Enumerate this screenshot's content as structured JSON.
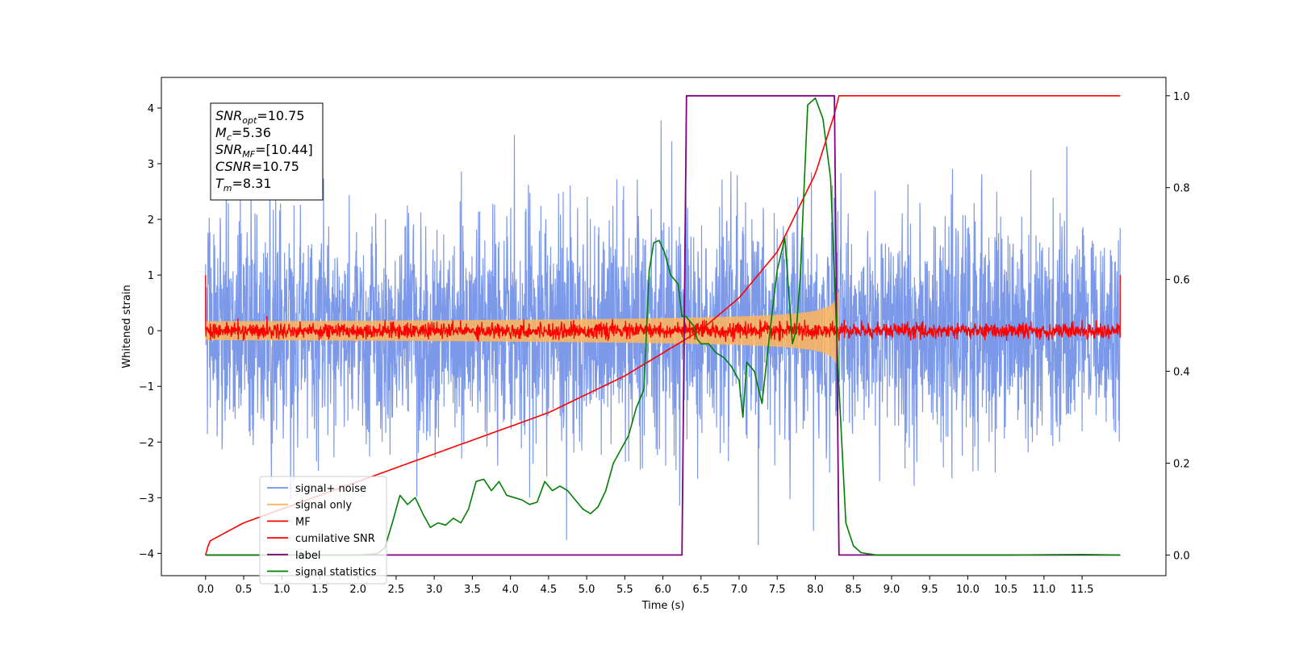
{
  "chart_data": {
    "type": "line",
    "xlabel": "Time (s)",
    "ylabel_left": "Whitened strain",
    "ylabel_right": "",
    "xlim": [
      -0.58,
      12.6
    ],
    "ylim_left": [
      -4.4,
      4.55
    ],
    "ylim_right": [
      -0.045,
      1.04
    ],
    "x_ticks": [
      "0.0",
      "0.5",
      "1.0",
      "1.5",
      "2.0",
      "2.5",
      "3.0",
      "3.5",
      "4.0",
      "4.5",
      "5.0",
      "5.5",
      "6.0",
      "6.5",
      "7.0",
      "7.5",
      "8.0",
      "8.5",
      "9.0",
      "9.5",
      "10.0",
      "10.5",
      "11.0",
      "11.5"
    ],
    "y_ticks_left": [
      "4",
      "3",
      "2",
      "1",
      "0",
      "−1",
      "−2",
      "−3",
      "−4"
    ],
    "y_ticks_right": [
      "1.0",
      "0.8",
      "0.6",
      "0.4",
      "0.2",
      "0.0"
    ],
    "grid": false,
    "legend_position": "lower-left",
    "annotation": {
      "lines": [
        {
          "base": "SNR",
          "sub": "opt",
          "rest": "=10.75"
        },
        {
          "base": "M",
          "sub": "c",
          "rest": "=5.36"
        },
        {
          "base": "SNR",
          "sub": "MF",
          "rest": "=[10.44]"
        },
        {
          "base": "CSNR",
          "sub": "",
          "rest": "=10.75"
        },
        {
          "base": "T",
          "sub": "m",
          "rest": "=8.31"
        }
      ]
    },
    "series": [
      {
        "name": "signal+ noise",
        "axis": "left",
        "color": "#7593e8",
        "style": "noise",
        "x_range": [
          0,
          12
        ],
        "typical_range": [
          -1.9,
          2.0
        ],
        "extremes": [
          -3.85,
          4.15
        ]
      },
      {
        "name": "signal only",
        "axis": "left",
        "color": "#ffb55a",
        "style": "chirp",
        "x_range": [
          0,
          8.31
        ],
        "peak_amplitude": 0.75
      },
      {
        "name": "MF",
        "axis": "left",
        "color": "#ff0000",
        "style": "noise-small",
        "x_range": [
          0,
          12
        ],
        "typical_range": [
          -0.15,
          0.15
        ],
        "edge_value": 1.0
      },
      {
        "name": "cumilative SNR",
        "axis": "right",
        "color": "#ff0000",
        "style": "curve",
        "x": [
          0.0,
          0.05,
          0.5,
          1.0,
          1.5,
          2.0,
          2.5,
          3.0,
          3.5,
          4.0,
          4.5,
          5.0,
          5.5,
          6.0,
          6.5,
          7.0,
          7.5,
          8.0,
          8.25,
          8.31,
          12.0
        ],
        "y": [
          0.0,
          0.03,
          0.07,
          0.1,
          0.13,
          0.16,
          0.19,
          0.22,
          0.25,
          0.28,
          0.31,
          0.35,
          0.39,
          0.44,
          0.49,
          0.56,
          0.66,
          0.83,
          0.96,
          1.0,
          1.0
        ]
      },
      {
        "name": "label",
        "axis": "right",
        "color": "#800080",
        "style": "step",
        "x": [
          0.0,
          6.25,
          6.31,
          8.25,
          8.31,
          12.0
        ],
        "y": [
          0.0,
          0.0,
          1.0,
          1.0,
          0.0,
          0.0
        ]
      },
      {
        "name": "signal statistics",
        "axis": "right",
        "color": "#008000",
        "style": "line",
        "x": [
          0.0,
          1.0,
          2.0,
          2.25,
          2.35,
          2.45,
          2.55,
          2.65,
          2.75,
          2.85,
          2.95,
          3.05,
          3.15,
          3.25,
          3.35,
          3.45,
          3.55,
          3.65,
          3.75,
          3.85,
          3.95,
          4.05,
          4.15,
          4.25,
          4.35,
          4.45,
          4.55,
          4.65,
          4.75,
          4.85,
          4.95,
          5.05,
          5.15,
          5.25,
          5.35,
          5.45,
          5.55,
          5.65,
          5.75,
          5.82,
          5.88,
          5.95,
          6.02,
          6.1,
          6.2,
          6.25,
          6.3,
          6.4,
          6.45,
          6.5,
          6.6,
          6.7,
          6.8,
          6.9,
          7.0,
          7.05,
          7.1,
          7.2,
          7.3,
          7.4,
          7.5,
          7.6,
          7.7,
          7.75,
          7.8,
          7.9,
          8.0,
          8.1,
          8.2,
          8.3,
          8.4,
          8.5,
          8.6,
          8.8,
          9.5,
          10.5,
          11.5,
          12.0
        ],
        "y": [
          0.0,
          0.0,
          0.0,
          0.003,
          0.015,
          0.07,
          0.13,
          0.11,
          0.125,
          0.09,
          0.06,
          0.07,
          0.065,
          0.08,
          0.07,
          0.1,
          0.16,
          0.165,
          0.14,
          0.16,
          0.13,
          0.125,
          0.12,
          0.11,
          0.115,
          0.16,
          0.14,
          0.15,
          0.14,
          0.12,
          0.1,
          0.09,
          0.105,
          0.14,
          0.2,
          0.23,
          0.26,
          0.32,
          0.36,
          0.62,
          0.68,
          0.685,
          0.66,
          0.61,
          0.59,
          0.52,
          0.52,
          0.5,
          0.47,
          0.46,
          0.46,
          0.44,
          0.43,
          0.41,
          0.38,
          0.3,
          0.42,
          0.4,
          0.33,
          0.48,
          0.62,
          0.69,
          0.46,
          0.49,
          0.6,
          0.98,
          0.995,
          0.95,
          0.82,
          0.4,
          0.07,
          0.02,
          0.005,
          0.0,
          0.0,
          0.0,
          0.001,
          0.0
        ]
      }
    ]
  }
}
